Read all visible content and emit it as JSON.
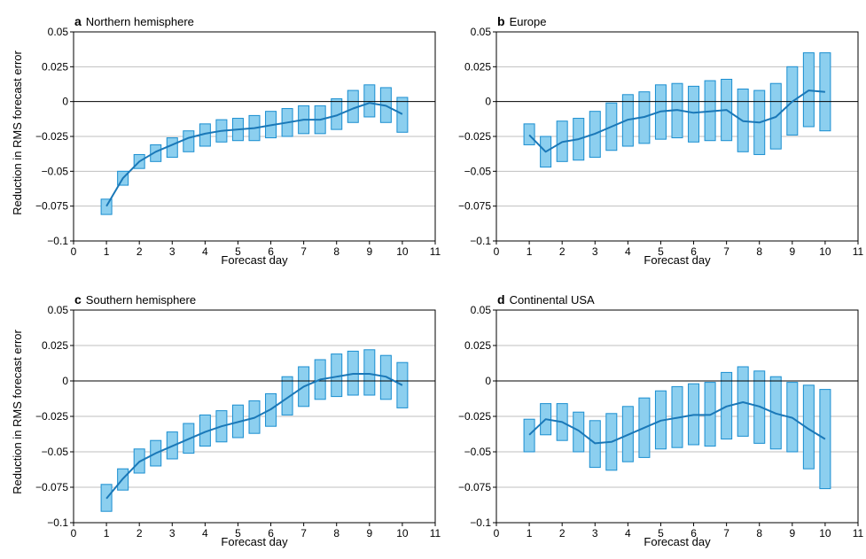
{
  "figure": {
    "ylabel": "Reduction in RMS forecast error",
    "xlabel": "Forecast day"
  },
  "colors": {
    "box_fill": "#8ccfef",
    "box_stroke": "#1a8ed0",
    "line": "#1a78b8",
    "zero_line": "#000000",
    "grid": "#bfbfbf"
  },
  "chart_data": [
    {
      "type": "line",
      "letter": "a",
      "title": "Northern hemisphere",
      "xlim": [
        0,
        11
      ],
      "ylim": [
        -0.1,
        0.05
      ],
      "xticks": [
        0,
        1,
        2,
        3,
        4,
        5,
        6,
        7,
        8,
        9,
        10,
        11
      ],
      "yticks": [
        "0.05",
        "0.025",
        "0",
        "−0.025",
        "−0.05",
        "−0.075",
        "−0.1"
      ],
      "ytick_values": [
        0.05,
        0.025,
        0,
        -0.025,
        -0.05,
        -0.075,
        -0.1
      ],
      "show_ylabel": true,
      "x": [
        1,
        1.5,
        2,
        2.5,
        3,
        3.5,
        4,
        4.5,
        5,
        5.5,
        6,
        6.5,
        7,
        7.5,
        8,
        8.5,
        9,
        9.5,
        10
      ],
      "mean": [
        -0.075,
        -0.055,
        -0.043,
        -0.036,
        -0.031,
        -0.026,
        -0.023,
        -0.021,
        -0.02,
        -0.019,
        -0.017,
        -0.015,
        -0.013,
        -0.013,
        -0.01,
        -0.005,
        -0.001,
        -0.003,
        -0.009
      ],
      "low": [
        -0.081,
        -0.06,
        -0.048,
        -0.043,
        -0.04,
        -0.036,
        -0.032,
        -0.029,
        -0.028,
        -0.028,
        -0.026,
        -0.025,
        -0.023,
        -0.023,
        -0.02,
        -0.015,
        -0.011,
        -0.015,
        -0.022
      ],
      "high": [
        -0.07,
        -0.05,
        -0.038,
        -0.031,
        -0.026,
        -0.021,
        -0.016,
        -0.013,
        -0.012,
        -0.01,
        -0.007,
        -0.005,
        -0.003,
        -0.003,
        0.002,
        0.008,
        0.012,
        0.01,
        0.003
      ]
    },
    {
      "type": "line",
      "letter": "b",
      "title": "Europe",
      "xlim": [
        0,
        11
      ],
      "ylim": [
        -0.1,
        0.05
      ],
      "xticks": [
        0,
        1,
        2,
        3,
        4,
        5,
        6,
        7,
        8,
        9,
        10,
        11
      ],
      "yticks": [
        "0.05",
        "0.025",
        "0",
        "−0.025",
        "−0.05",
        "−0.075",
        "−0.1"
      ],
      "ytick_values": [
        0.05,
        0.025,
        0,
        -0.025,
        -0.05,
        -0.075,
        -0.1
      ],
      "show_ylabel": false,
      "x": [
        1,
        1.5,
        2,
        2.5,
        3,
        3.5,
        4,
        4.5,
        5,
        5.5,
        6,
        6.5,
        7,
        7.5,
        8,
        8.5,
        9,
        9.5,
        10
      ],
      "mean": [
        -0.024,
        -0.036,
        -0.029,
        -0.027,
        -0.023,
        -0.018,
        -0.013,
        -0.011,
        -0.007,
        -0.006,
        -0.008,
        -0.007,
        -0.006,
        -0.014,
        -0.015,
        -0.011,
        0.0,
        0.008,
        0.007
      ],
      "low": [
        -0.031,
        -0.047,
        -0.043,
        -0.042,
        -0.04,
        -0.035,
        -0.032,
        -0.03,
        -0.027,
        -0.026,
        -0.029,
        -0.028,
        -0.028,
        -0.036,
        -0.038,
        -0.034,
        -0.024,
        -0.018,
        -0.021
      ],
      "high": [
        -0.016,
        -0.025,
        -0.014,
        -0.012,
        -0.007,
        -0.001,
        0.005,
        0.007,
        0.012,
        0.013,
        0.011,
        0.015,
        0.016,
        0.009,
        0.008,
        0.013,
        0.025,
        0.035,
        0.035
      ]
    },
    {
      "type": "line",
      "letter": "c",
      "title": "Southern hemisphere",
      "xlim": [
        0,
        11
      ],
      "ylim": [
        -0.1,
        0.05
      ],
      "xticks": [
        0,
        1,
        2,
        3,
        4,
        5,
        6,
        7,
        8,
        9,
        10,
        11
      ],
      "yticks": [
        "0.05",
        "0.025",
        "0",
        "−0.025",
        "−0.05",
        "−0.075",
        "−0.1"
      ],
      "ytick_values": [
        0.05,
        0.025,
        0,
        -0.025,
        -0.05,
        -0.075,
        -0.1
      ],
      "show_ylabel": true,
      "x": [
        1,
        1.5,
        2,
        2.5,
        3,
        3.5,
        4,
        4.5,
        5,
        5.5,
        6,
        6.5,
        7,
        7.5,
        8,
        8.5,
        9,
        9.5,
        10
      ],
      "mean": [
        -0.083,
        -0.069,
        -0.057,
        -0.051,
        -0.046,
        -0.041,
        -0.036,
        -0.032,
        -0.029,
        -0.026,
        -0.02,
        -0.012,
        -0.004,
        0.001,
        0.003,
        0.005,
        0.005,
        0.003,
        -0.003
      ],
      "low": [
        -0.092,
        -0.077,
        -0.065,
        -0.06,
        -0.055,
        -0.051,
        -0.046,
        -0.043,
        -0.04,
        -0.037,
        -0.032,
        -0.024,
        -0.018,
        -0.013,
        -0.011,
        -0.01,
        -0.01,
        -0.013,
        -0.019
      ],
      "high": [
        -0.073,
        -0.062,
        -0.048,
        -0.042,
        -0.036,
        -0.03,
        -0.024,
        -0.021,
        -0.017,
        -0.014,
        -0.009,
        0.003,
        0.01,
        0.015,
        0.019,
        0.021,
        0.022,
        0.018,
        0.013
      ]
    },
    {
      "type": "line",
      "letter": "d",
      "title": "Continental USA",
      "xlim": [
        0,
        11
      ],
      "ylim": [
        -0.1,
        0.05
      ],
      "xticks": [
        0,
        1,
        2,
        3,
        4,
        5,
        6,
        7,
        8,
        9,
        10,
        11
      ],
      "yticks": [
        "0.05",
        "0.025",
        "0",
        "−0.025",
        "−0.05",
        "−0.075",
        "−0.1"
      ],
      "ytick_values": [
        0.05,
        0.025,
        0,
        -0.025,
        -0.05,
        -0.075,
        -0.1
      ],
      "show_ylabel": false,
      "x": [
        1,
        1.5,
        2,
        2.5,
        3,
        3.5,
        4,
        4.5,
        5,
        5.5,
        6,
        6.5,
        7,
        7.5,
        8,
        8.5,
        9,
        9.5,
        10
      ],
      "mean": [
        -0.038,
        -0.027,
        -0.029,
        -0.035,
        -0.044,
        -0.043,
        -0.038,
        -0.033,
        -0.028,
        -0.026,
        -0.024,
        -0.024,
        -0.018,
        -0.015,
        -0.018,
        -0.023,
        -0.026,
        -0.034,
        -0.041
      ],
      "low": [
        -0.05,
        -0.038,
        -0.042,
        -0.05,
        -0.061,
        -0.063,
        -0.057,
        -0.054,
        -0.048,
        -0.047,
        -0.045,
        -0.046,
        -0.041,
        -0.039,
        -0.044,
        -0.048,
        -0.05,
        -0.062,
        -0.076
      ],
      "high": [
        -0.027,
        -0.016,
        -0.016,
        -0.022,
        -0.028,
        -0.023,
        -0.018,
        -0.012,
        -0.007,
        -0.004,
        -0.002,
        -0.001,
        0.006,
        0.01,
        0.007,
        0.003,
        -0.001,
        -0.003,
        -0.006
      ]
    }
  ]
}
